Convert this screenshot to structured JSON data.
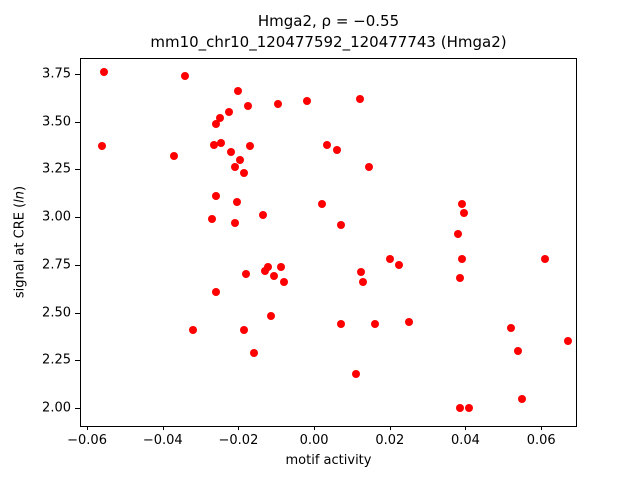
{
  "chart_data": {
    "type": "scatter",
    "title": "Hmga2, ρ = −0.55",
    "subtitle": "mm10_chr10_120477592_120477743 (Hmga2)",
    "xlabel": "motif activity",
    "ylabel": "signal at CRE (ln)",
    "ylabel_parts": {
      "prefix": "signal at CRE (",
      "italic": "ln",
      "suffix": ")"
    },
    "marker_color": "#ff0000",
    "legend": "none",
    "grid": false,
    "xlim": [
      -0.0616,
      0.0692
    ],
    "ylim": [
      1.906,
      3.828
    ],
    "x_ticks": [
      -0.06,
      -0.04,
      -0.02,
      0.0,
      0.02,
      0.04,
      0.06
    ],
    "x_tick_labels": [
      "−0.06",
      "−0.04",
      "−0.02",
      "0.00",
      "0.02",
      "0.04",
      "0.06"
    ],
    "y_ticks": [
      2.0,
      2.25,
      2.5,
      2.75,
      3.0,
      3.25,
      3.5,
      3.75
    ],
    "y_tick_labels": [
      "2.00",
      "2.25",
      "2.50",
      "2.75",
      "3.00",
      "3.25",
      "3.50",
      "3.75"
    ],
    "points": [
      [
        -0.0555,
        3.76
      ],
      [
        -0.034,
        3.74
      ],
      [
        -0.02,
        3.66
      ],
      [
        -0.0225,
        3.55
      ],
      [
        -0.026,
        3.49
      ],
      [
        -0.025,
        3.52
      ],
      [
        -0.0175,
        3.58
      ],
      [
        -0.0095,
        3.59
      ],
      [
        -0.002,
        3.61
      ],
      [
        0.012,
        3.62
      ],
      [
        -0.056,
        3.37
      ],
      [
        -0.037,
        3.32
      ],
      [
        -0.0265,
        3.38
      ],
      [
        -0.0245,
        3.39
      ],
      [
        -0.022,
        3.34
      ],
      [
        -0.017,
        3.37
      ],
      [
        -0.021,
        3.26
      ],
      [
        -0.0185,
        3.23
      ],
      [
        -0.0195,
        3.3
      ],
      [
        0.0035,
        3.38
      ],
      [
        0.006,
        3.35
      ],
      [
        0.0145,
        3.26
      ],
      [
        -0.026,
        3.11
      ],
      [
        -0.0205,
        3.08
      ],
      [
        -0.027,
        2.99
      ],
      [
        -0.021,
        2.97
      ],
      [
        -0.0135,
        3.01
      ],
      [
        0.002,
        3.07
      ],
      [
        0.007,
        2.96
      ],
      [
        0.039,
        3.07
      ],
      [
        0.0395,
        3.02
      ],
      [
        0.038,
        2.91
      ],
      [
        -0.026,
        2.61
      ],
      [
        -0.018,
        2.7
      ],
      [
        -0.013,
        2.72
      ],
      [
        -0.0122,
        2.74
      ],
      [
        -0.0105,
        2.69
      ],
      [
        -0.0088,
        2.74
      ],
      [
        -0.008,
        2.66
      ],
      [
        0.0125,
        2.71
      ],
      [
        0.0128,
        2.66
      ],
      [
        0.02,
        2.78
      ],
      [
        0.0225,
        2.75
      ],
      [
        0.039,
        2.78
      ],
      [
        0.0385,
        2.68
      ],
      [
        0.061,
        2.78
      ],
      [
        -0.032,
        2.41
      ],
      [
        -0.0185,
        2.41
      ],
      [
        -0.016,
        2.29
      ],
      [
        -0.0115,
        2.48
      ],
      [
        0.007,
        2.44
      ],
      [
        0.016,
        2.44
      ],
      [
        0.025,
        2.45
      ],
      [
        0.052,
        2.42
      ],
      [
        0.054,
        2.3
      ],
      [
        0.067,
        2.35
      ],
      [
        0.011,
        2.18
      ],
      [
        0.055,
        2.05
      ],
      [
        0.0385,
        2.0
      ],
      [
        0.041,
        2.0
      ]
    ]
  }
}
